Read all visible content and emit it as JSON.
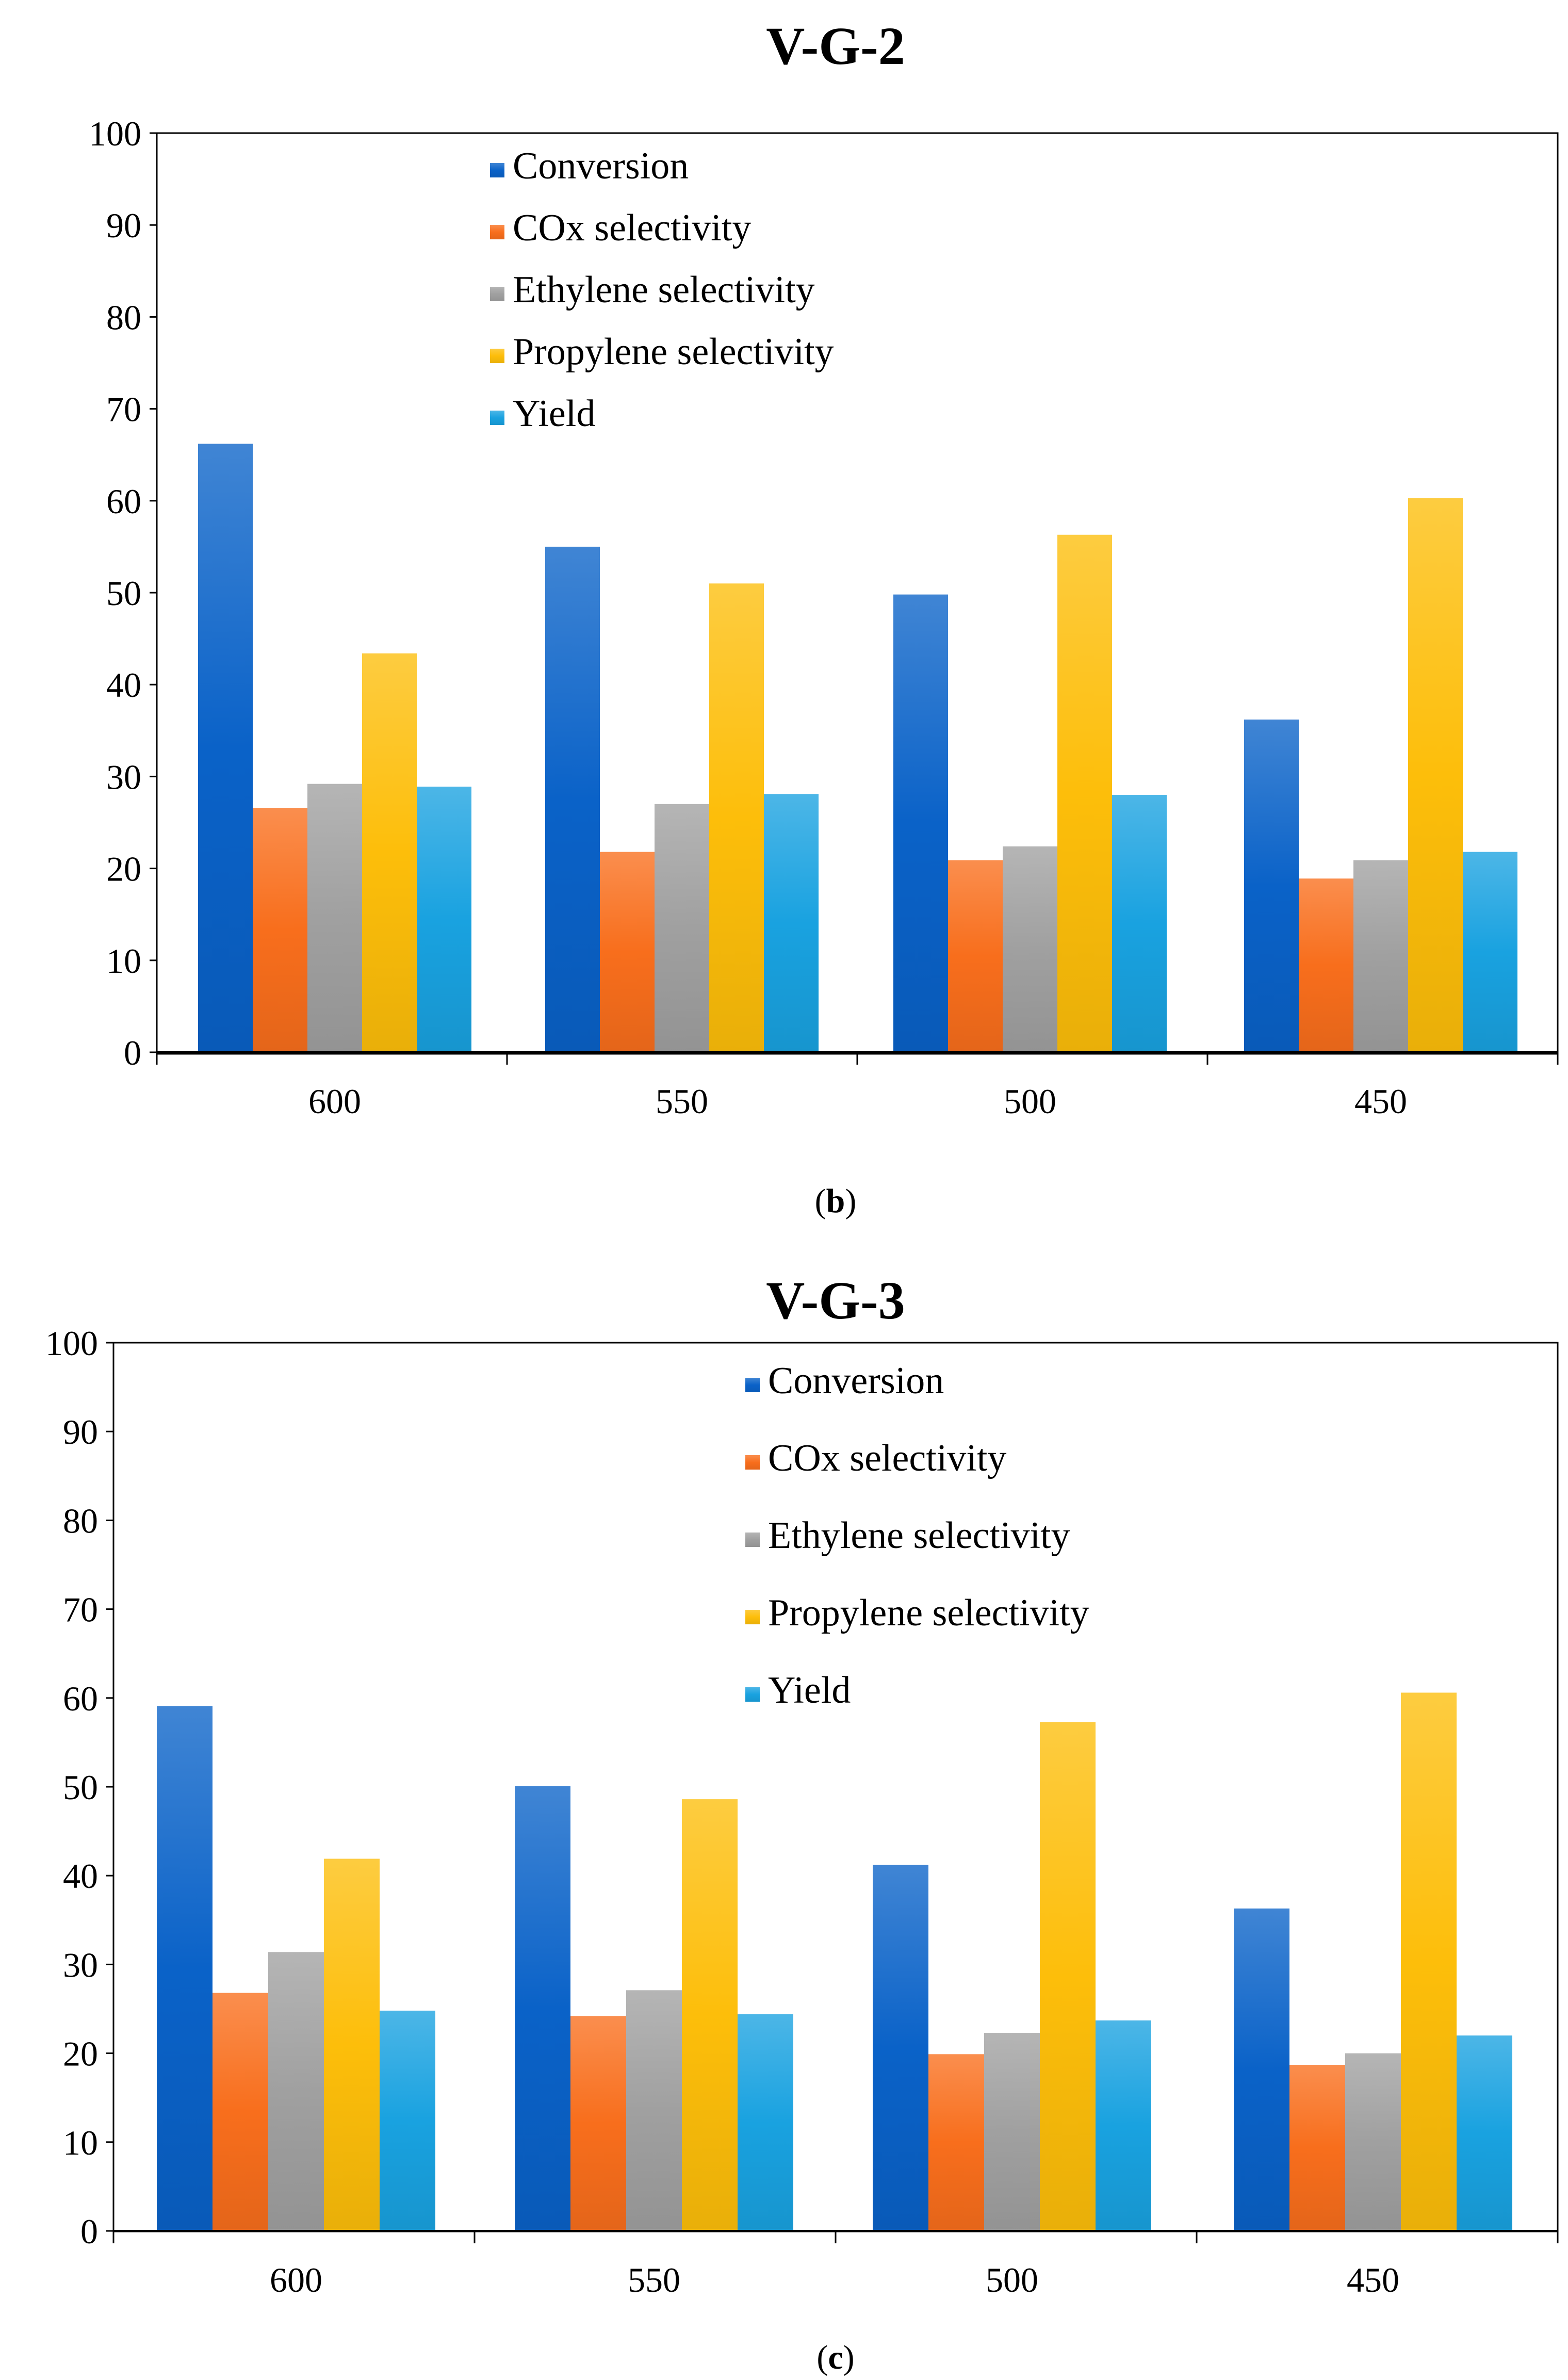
{
  "panels": [
    {
      "caption": "b",
      "chart_data": {
        "type": "bar",
        "title": "V-G-2",
        "xlabel": "",
        "ylabel": "",
        "categories": [
          "600",
          "550",
          "500",
          "450"
        ],
        "ylim": [
          0,
          100
        ],
        "yticks": [
          0,
          10,
          20,
          30,
          40,
          50,
          60,
          70,
          80,
          90,
          100
        ],
        "grid": false,
        "legend_position": "top-center",
        "series": [
          {
            "name": "Conversion",
            "color": "#0A62C8",
            "values": [
              66.2,
              55.0,
              49.8,
              36.2
            ]
          },
          {
            "name": "COx selectivity",
            "color": "#F86E1C",
            "values": [
              26.6,
              21.8,
              20.9,
              18.9
            ]
          },
          {
            "name": "Ethylene selectivity",
            "color": "#A0A0A0",
            "values": [
              29.2,
              27.0,
              22.4,
              20.9
            ]
          },
          {
            "name": "Propylene selectivity",
            "color": "#FDBE0A",
            "values": [
              43.4,
              51.0,
              56.3,
              60.3
            ]
          },
          {
            "name": "Yield",
            "color": "#19A2E0",
            "values": [
              28.9,
              28.1,
              28.0,
              21.8
            ]
          }
        ]
      }
    },
    {
      "caption": "c",
      "chart_data": {
        "type": "bar",
        "title": "V-G-3",
        "xlabel": "",
        "ylabel": "",
        "categories": [
          "600",
          "550",
          "500",
          "450"
        ],
        "ylim": [
          0,
          100
        ],
        "yticks": [
          0,
          10,
          20,
          30,
          40,
          50,
          60,
          70,
          80,
          90,
          100
        ],
        "grid": false,
        "legend_position": "top-center",
        "series": [
          {
            "name": "Conversion",
            "color": "#0A62C8",
            "values": [
              59.1,
              50.1,
              41.2,
              36.3
            ]
          },
          {
            "name": "COx selectivity",
            "color": "#F86E1C",
            "values": [
              26.8,
              24.2,
              19.9,
              18.7
            ]
          },
          {
            "name": "Ethylene selectivity",
            "color": "#A0A0A0",
            "values": [
              31.4,
              27.1,
              22.3,
              20.0
            ]
          },
          {
            "name": "Propylene selectivity",
            "color": "#FDBE0A",
            "values": [
              41.9,
              48.6,
              57.3,
              60.6
            ]
          },
          {
            "name": "Yield",
            "color": "#19A2E0",
            "values": [
              24.8,
              24.4,
              23.7,
              22.0
            ]
          }
        ]
      }
    }
  ]
}
